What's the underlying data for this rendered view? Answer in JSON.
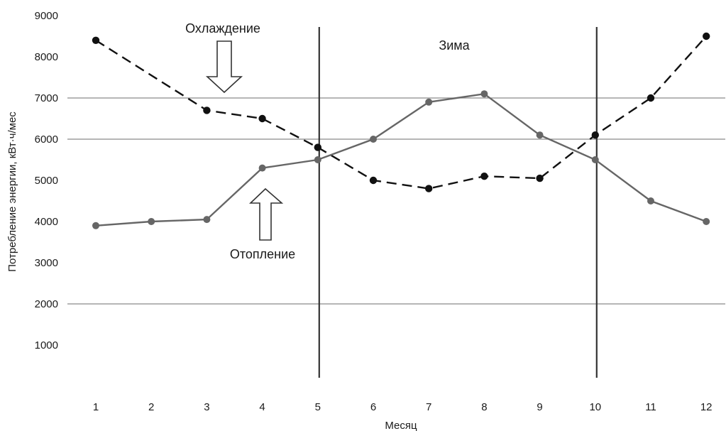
{
  "chart_data": {
    "type": "line",
    "ylabel": "Потребление энергии, кВт·ч/мес",
    "xlabel": "Месяц",
    "ylim": [
      0,
      9000
    ],
    "yticks": [
      1000,
      2000,
      3000,
      4000,
      5000,
      6000,
      7000,
      8000,
      9000
    ],
    "x": [
      1,
      2,
      3,
      4,
      5,
      6,
      7,
      8,
      9,
      10,
      11,
      12
    ],
    "grid_y": [
      2000,
      6000,
      7000
    ],
    "series": [
      {
        "name": "Охлаждение",
        "style": "dashed",
        "color": "#111111",
        "values": [
          8400,
          null,
          6700,
          6500,
          5800,
          5000,
          4800,
          5100,
          5050,
          6100,
          7000,
          8500
        ]
      },
      {
        "name": "Отопление",
        "style": "solid",
        "color": "#666666",
        "values": [
          3900,
          4000,
          4050,
          5300,
          5500,
          6000,
          6900,
          7100,
          6100,
          5500,
          4500,
          4000
        ]
      }
    ],
    "period_dividers": [
      5,
      10
    ],
    "period_label": "Зима",
    "annotations": {
      "cooling": "Охлаждение",
      "heating": "Отопление"
    }
  }
}
